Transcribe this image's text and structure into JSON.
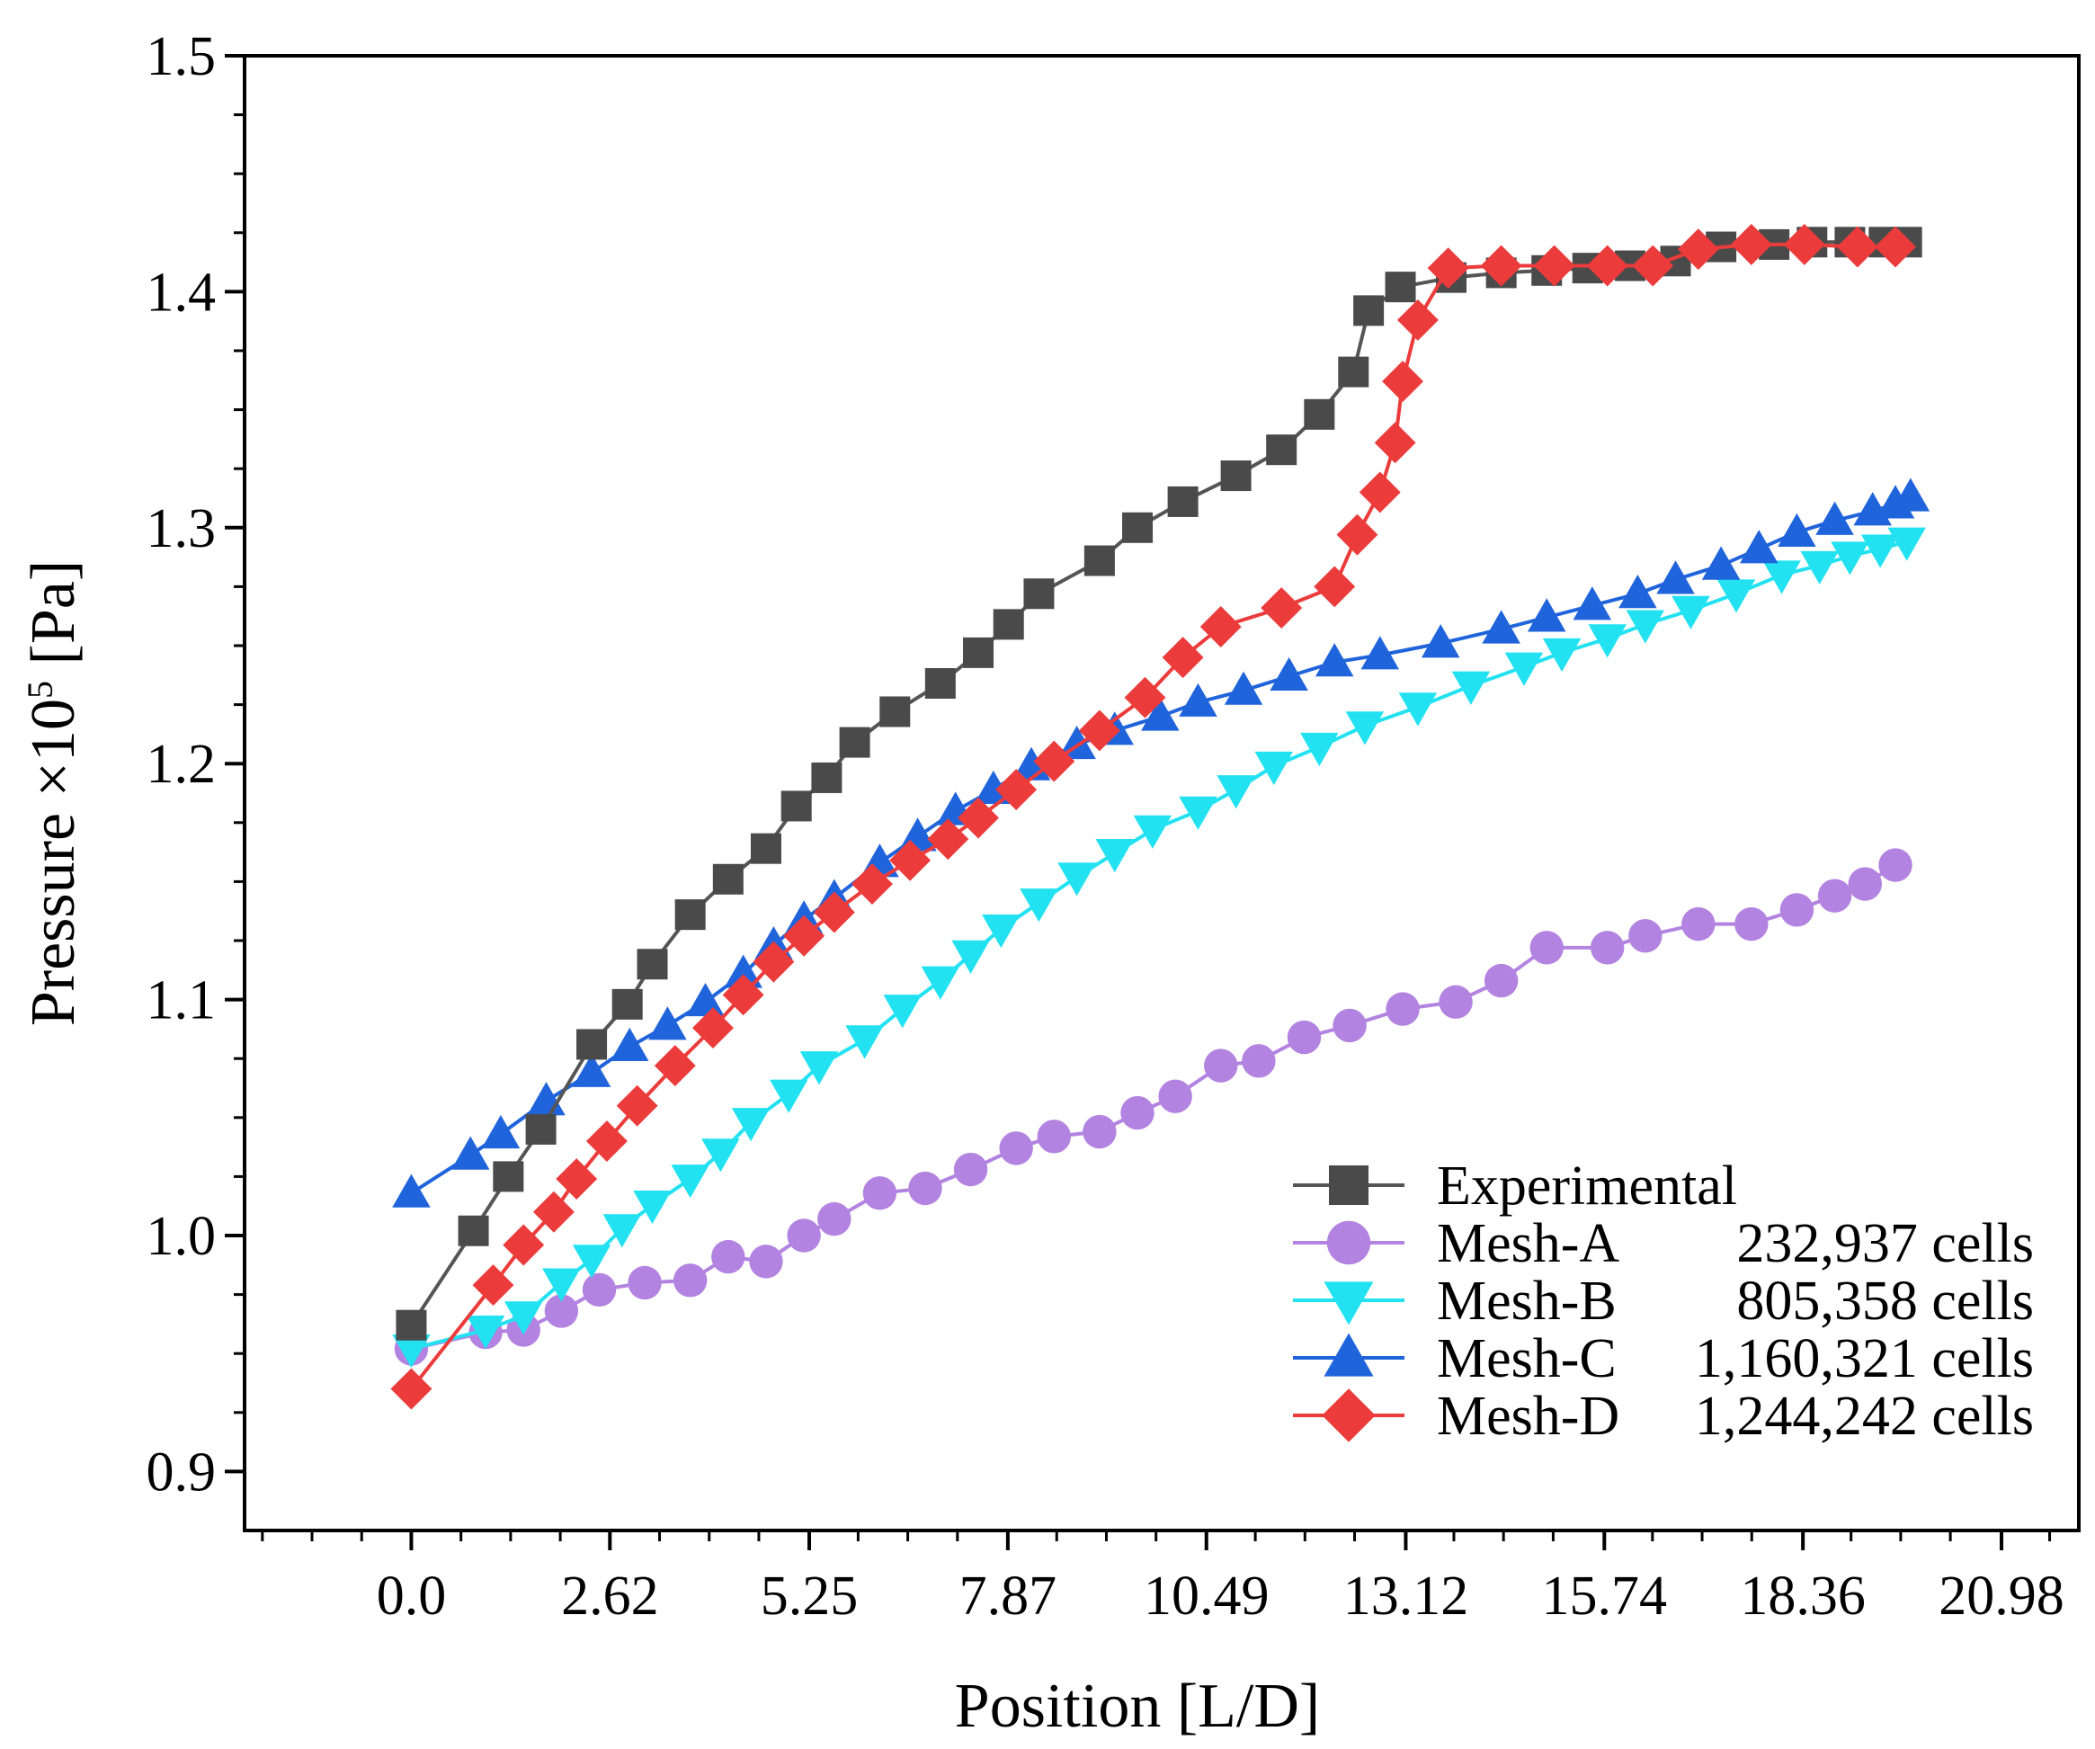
{
  "chart_data": {
    "type": "line",
    "xlabel": "Position [L/D]",
    "ylabel_main": "Pressure ×10",
    "ylabel_exp": "5",
    "ylabel_unit": " [Pa]",
    "xlim": [
      -2.2,
      22.0
    ],
    "ylim": [
      0.875,
      1.5
    ],
    "xticks": [
      0.0,
      2.62,
      5.25,
      7.87,
      10.49,
      13.12,
      15.74,
      18.36,
      20.98
    ],
    "xtick_labels": [
      "0.0",
      "2.62",
      "5.25",
      "7.87",
      "10.49",
      "13.12",
      "15.74",
      "18.36",
      "20.98"
    ],
    "xminor_step": 0.655,
    "yticks": [
      0.9,
      1.0,
      1.1,
      1.2,
      1.3,
      1.4,
      1.5
    ],
    "ytick_labels": [
      "0.9",
      "1.0",
      "1.1",
      "1.2",
      "1.3",
      "1.4",
      "1.5"
    ],
    "yminor_step": 0.025,
    "series": [
      {
        "name": "Experimental",
        "legend_label": "Experimental",
        "legend_cells": "",
        "marker": "square",
        "color": "#4a4a4a",
        "line_color": "#555555",
        "points": [
          [
            0.0,
            0.962
          ],
          [
            0.82,
            1.002
          ],
          [
            1.28,
            1.025
          ],
          [
            1.71,
            1.045
          ],
          [
            2.38,
            1.081
          ],
          [
            2.85,
            1.098
          ],
          [
            3.18,
            1.115
          ],
          [
            3.68,
            1.136
          ],
          [
            4.18,
            1.151
          ],
          [
            4.68,
            1.164
          ],
          [
            5.08,
            1.182
          ],
          [
            5.48,
            1.194
          ],
          [
            5.85,
            1.209
          ],
          [
            6.38,
            1.222
          ],
          [
            6.98,
            1.234
          ],
          [
            7.48,
            1.247
          ],
          [
            7.88,
            1.259
          ],
          [
            8.28,
            1.272
          ],
          [
            9.08,
            1.286
          ],
          [
            9.58,
            1.3
          ],
          [
            10.18,
            1.311
          ],
          [
            10.88,
            1.322
          ],
          [
            11.48,
            1.333
          ],
          [
            11.98,
            1.348
          ],
          [
            12.43,
            1.366
          ],
          [
            12.63,
            1.392
          ],
          [
            13.05,
            1.402
          ],
          [
            13.72,
            1.406
          ],
          [
            14.38,
            1.408
          ],
          [
            14.98,
            1.409
          ],
          [
            15.52,
            1.41
          ],
          [
            16.08,
            1.411
          ],
          [
            16.68,
            1.413
          ],
          [
            17.28,
            1.419
          ],
          [
            17.98,
            1.42
          ],
          [
            18.48,
            1.421
          ],
          [
            18.98,
            1.421
          ],
          [
            19.43,
            1.421
          ],
          [
            19.73,
            1.421
          ]
        ]
      },
      {
        "name": "Mesh-A",
        "legend_label": "Mesh-A",
        "legend_cells": "232,937 cells",
        "marker": "circle",
        "color": "#b283e0",
        "line_color": "#b283e0",
        "points": [
          [
            0.0,
            0.952
          ],
          [
            0.98,
            0.959
          ],
          [
            1.48,
            0.96
          ],
          [
            1.98,
            0.968
          ],
          [
            2.48,
            0.977
          ],
          [
            3.08,
            0.98
          ],
          [
            3.68,
            0.981
          ],
          [
            4.18,
            0.991
          ],
          [
            4.68,
            0.989
          ],
          [
            5.18,
            1.0
          ],
          [
            5.58,
            1.007
          ],
          [
            6.18,
            1.018
          ],
          [
            6.78,
            1.02
          ],
          [
            7.38,
            1.028
          ],
          [
            7.98,
            1.037
          ],
          [
            8.48,
            1.042
          ],
          [
            9.08,
            1.044
          ],
          [
            9.58,
            1.052
          ],
          [
            10.08,
            1.059
          ],
          [
            10.68,
            1.072
          ],
          [
            11.18,
            1.074
          ],
          [
            11.78,
            1.084
          ],
          [
            12.38,
            1.089
          ],
          [
            13.08,
            1.096
          ],
          [
            13.78,
            1.099
          ],
          [
            14.38,
            1.108
          ],
          [
            14.98,
            1.122
          ],
          [
            15.78,
            1.122
          ],
          [
            16.28,
            1.127
          ],
          [
            16.98,
            1.132
          ],
          [
            17.68,
            1.132
          ],
          [
            18.28,
            1.138
          ],
          [
            18.78,
            1.144
          ],
          [
            19.18,
            1.149
          ],
          [
            19.58,
            1.157
          ]
        ]
      },
      {
        "name": "Mesh-B",
        "legend_label": "Mesh-B",
        "legend_cells": "805,358 cells",
        "marker": "triangle-down",
        "color": "#22e2f2",
        "line_color": "#22e2f2",
        "points": [
          [
            0.0,
            0.952
          ],
          [
            0.98,
            0.96
          ],
          [
            1.48,
            0.966
          ],
          [
            1.98,
            0.98
          ],
          [
            2.38,
            0.99
          ],
          [
            2.78,
            1.003
          ],
          [
            3.18,
            1.013
          ],
          [
            3.68,
            1.024
          ],
          [
            4.08,
            1.035
          ],
          [
            4.48,
            1.048
          ],
          [
            4.98,
            1.06
          ],
          [
            5.38,
            1.072
          ],
          [
            5.98,
            1.083
          ],
          [
            6.48,
            1.096
          ],
          [
            6.98,
            1.108
          ],
          [
            7.38,
            1.119
          ],
          [
            7.78,
            1.13
          ],
          [
            8.28,
            1.141
          ],
          [
            8.78,
            1.152
          ],
          [
            9.28,
            1.162
          ],
          [
            9.78,
            1.172
          ],
          [
            10.38,
            1.18
          ],
          [
            10.88,
            1.189
          ],
          [
            11.38,
            1.199
          ],
          [
            11.98,
            1.207
          ],
          [
            12.58,
            1.216
          ],
          [
            13.28,
            1.224
          ],
          [
            13.98,
            1.233
          ],
          [
            14.68,
            1.241
          ],
          [
            15.18,
            1.247
          ],
          [
            15.78,
            1.253
          ],
          [
            16.28,
            1.259
          ],
          [
            16.88,
            1.265
          ],
          [
            17.48,
            1.272
          ],
          [
            18.08,
            1.28
          ],
          [
            18.58,
            1.284
          ],
          [
            18.98,
            1.288
          ],
          [
            19.38,
            1.291
          ],
          [
            19.73,
            1.294
          ]
        ]
      },
      {
        "name": "Mesh-C",
        "legend_label": "Mesh-C",
        "legend_cells": "1,160,321 cells",
        "marker": "triangle-up",
        "color": "#2064dc",
        "line_color": "#2064dc",
        "points": [
          [
            0.0,
            1.018
          ],
          [
            0.78,
            1.034
          ],
          [
            1.18,
            1.043
          ],
          [
            1.78,
            1.057
          ],
          [
            2.38,
            1.069
          ],
          [
            2.88,
            1.08
          ],
          [
            3.38,
            1.089
          ],
          [
            3.88,
            1.099
          ],
          [
            4.38,
            1.111
          ],
          [
            4.78,
            1.123
          ],
          [
            5.18,
            1.134
          ],
          [
            5.58,
            1.143
          ],
          [
            6.18,
            1.158
          ],
          [
            6.68,
            1.169
          ],
          [
            7.18,
            1.18
          ],
          [
            7.68,
            1.189
          ],
          [
            8.18,
            1.199
          ],
          [
            8.78,
            1.208
          ],
          [
            9.28,
            1.214
          ],
          [
            9.88,
            1.22
          ],
          [
            10.38,
            1.226
          ],
          [
            10.98,
            1.231
          ],
          [
            11.58,
            1.237
          ],
          [
            12.18,
            1.243
          ],
          [
            12.78,
            1.246
          ],
          [
            13.58,
            1.251
          ],
          [
            14.38,
            1.257
          ],
          [
            14.98,
            1.262
          ],
          [
            15.58,
            1.267
          ],
          [
            16.18,
            1.272
          ],
          [
            16.68,
            1.278
          ],
          [
            17.28,
            1.284
          ],
          [
            17.78,
            1.291
          ],
          [
            18.28,
            1.298
          ],
          [
            18.78,
            1.303
          ],
          [
            19.28,
            1.307
          ],
          [
            19.58,
            1.31
          ],
          [
            19.78,
            1.313
          ]
        ]
      },
      {
        "name": "Mesh-D",
        "legend_label": "Mesh-D",
        "legend_cells": "1,244,242 cells",
        "marker": "diamond",
        "color": "#ec3b3b",
        "line_color": "#ec3b3b",
        "points": [
          [
            0.0,
            0.935
          ],
          [
            1.08,
            0.979
          ],
          [
            1.48,
            0.996
          ],
          [
            1.88,
            1.01
          ],
          [
            2.18,
            1.024
          ],
          [
            2.58,
            1.04
          ],
          [
            2.98,
            1.055
          ],
          [
            3.48,
            1.072
          ],
          [
            3.98,
            1.088
          ],
          [
            4.38,
            1.102
          ],
          [
            4.78,
            1.116
          ],
          [
            5.18,
            1.127
          ],
          [
            5.58,
            1.137
          ],
          [
            6.08,
            1.149
          ],
          [
            6.58,
            1.159
          ],
          [
            7.08,
            1.168
          ],
          [
            7.48,
            1.177
          ],
          [
            7.98,
            1.189
          ],
          [
            8.48,
            1.201
          ],
          [
            9.08,
            1.214
          ],
          [
            9.68,
            1.228
          ],
          [
            10.18,
            1.245
          ],
          [
            10.68,
            1.258
          ],
          [
            11.48,
            1.266
          ],
          [
            12.18,
            1.275
          ],
          [
            12.48,
            1.297
          ],
          [
            12.78,
            1.315
          ],
          [
            12.98,
            1.336
          ],
          [
            13.08,
            1.362
          ],
          [
            13.28,
            1.388
          ],
          [
            13.68,
            1.41
          ],
          [
            14.38,
            1.411
          ],
          [
            15.08,
            1.411
          ],
          [
            15.78,
            1.411
          ],
          [
            16.38,
            1.411
          ],
          [
            16.98,
            1.418
          ],
          [
            17.68,
            1.42
          ],
          [
            18.38,
            1.42
          ],
          [
            19.08,
            1.419
          ],
          [
            19.58,
            1.419
          ]
        ]
      }
    ]
  }
}
